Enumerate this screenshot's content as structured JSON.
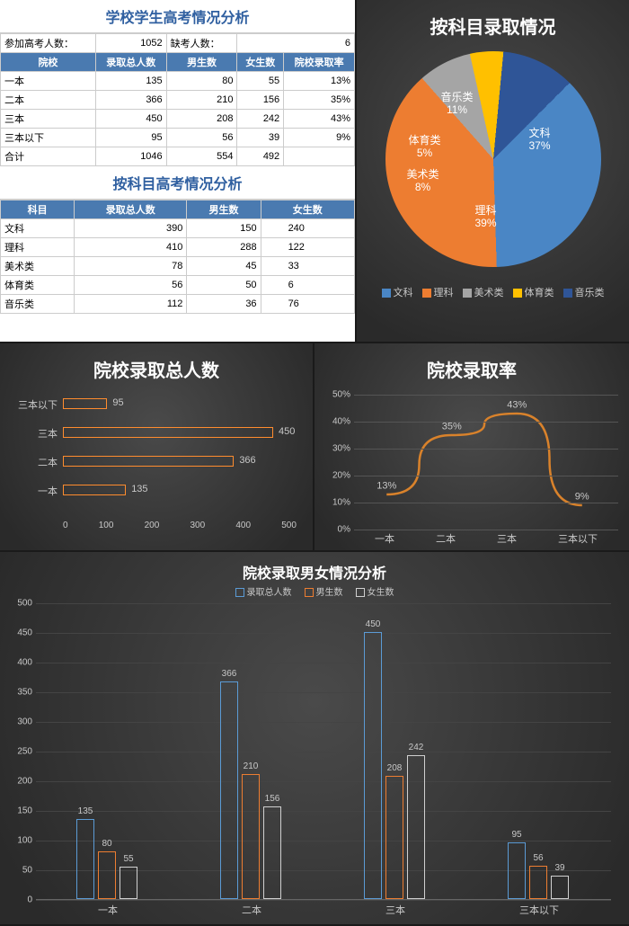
{
  "colors": {
    "blue": "#4a86c5",
    "orange": "#ed7d31",
    "gray": "#a5a5a5",
    "yellow": "#ffc000",
    "darkblue": "#2f5597",
    "hbarBorder": "#ff8c2e",
    "line": "#d9822b",
    "barTotal": "#5b9bd5",
    "barMale": "#ed7d31",
    "barFemale": "#d0d0d0"
  },
  "table1": {
    "title": "学校学生高考情况分析",
    "topLabels": [
      "参加高考人数：",
      "",
      "缺考人数：",
      ""
    ],
    "topVals": {
      "exam": 1052,
      "absent": 6
    },
    "headers": [
      "院校",
      "录取总人数",
      "男生数",
      "女生数",
      "院校录取率"
    ],
    "rows": [
      {
        "c": "一本",
        "t": 135,
        "m": 80,
        "f": 55,
        "r": "13%"
      },
      {
        "c": "二本",
        "t": 366,
        "m": 210,
        "f": 156,
        "r": "35%"
      },
      {
        "c": "三本",
        "t": 450,
        "m": 208,
        "f": 242,
        "r": "43%"
      },
      {
        "c": "三本以下",
        "t": 95,
        "m": 56,
        "f": 39,
        "r": "9%"
      },
      {
        "c": "合计",
        "t": 1046,
        "m": 554,
        "f": 492,
        "r": ""
      }
    ]
  },
  "table2": {
    "title": "按科目高考情况分析",
    "headers": [
      "科目",
      "录取总人数",
      "男生数",
      "女生数"
    ],
    "rows": [
      {
        "c": "文科",
        "t": 390,
        "m": 150,
        "f": 240
      },
      {
        "c": "理科",
        "t": 410,
        "m": 288,
        "f": 122
      },
      {
        "c": "美术类",
        "t": 78,
        "m": 45,
        "f": 33
      },
      {
        "c": "体育类",
        "t": 56,
        "m": 50,
        "f": 6
      },
      {
        "c": "音乐类",
        "t": 112,
        "m": 36,
        "f": 76
      }
    ]
  },
  "pie": {
    "title": "按科目录取情况",
    "slices": [
      {
        "label": "文科",
        "pct": 37,
        "color": "blue"
      },
      {
        "label": "理科",
        "pct": 39,
        "color": "orange"
      },
      {
        "label": "美术类",
        "pct": 8,
        "color": "gray"
      },
      {
        "label": "体育类",
        "pct": 5,
        "color": "yellow"
      },
      {
        "label": "音乐类",
        "pct": 11,
        "color": "darkblue"
      }
    ]
  },
  "hbar": {
    "title": "院校录取总人数",
    "max": 500,
    "ticks": [
      0,
      100,
      200,
      300,
      400,
      500
    ],
    "bars": [
      {
        "label": "三本以下",
        "v": 95
      },
      {
        "label": "三本",
        "v": 450
      },
      {
        "label": "二本",
        "v": 366
      },
      {
        "label": "一本",
        "v": 135
      }
    ]
  },
  "line": {
    "title": "院校录取率",
    "ymax": 50,
    "yticks": [
      "0%",
      "10%",
      "20%",
      "30%",
      "40%",
      "50%"
    ],
    "cats": [
      "一本",
      "二本",
      "三本",
      "三本以下"
    ],
    "vals": [
      13,
      35,
      43,
      9
    ],
    "labels": [
      "13%",
      "35%",
      "43%",
      "9%"
    ]
  },
  "bigbar": {
    "title": "院校录取男女情况分析",
    "legend": [
      "录取总人数",
      "男生数",
      "女生数"
    ],
    "ymax": 500,
    "yticks": [
      0,
      50,
      100,
      150,
      200,
      250,
      300,
      350,
      400,
      450,
      500
    ],
    "cats": [
      "一本",
      "二本",
      "三本",
      "三本以下"
    ],
    "data": [
      {
        "t": 135,
        "m": 80,
        "f": 55
      },
      {
        "t": 366,
        "m": 210,
        "f": 156
      },
      {
        "t": 450,
        "m": 208,
        "f": 242
      },
      {
        "t": 95,
        "m": 56,
        "f": 39
      }
    ]
  }
}
